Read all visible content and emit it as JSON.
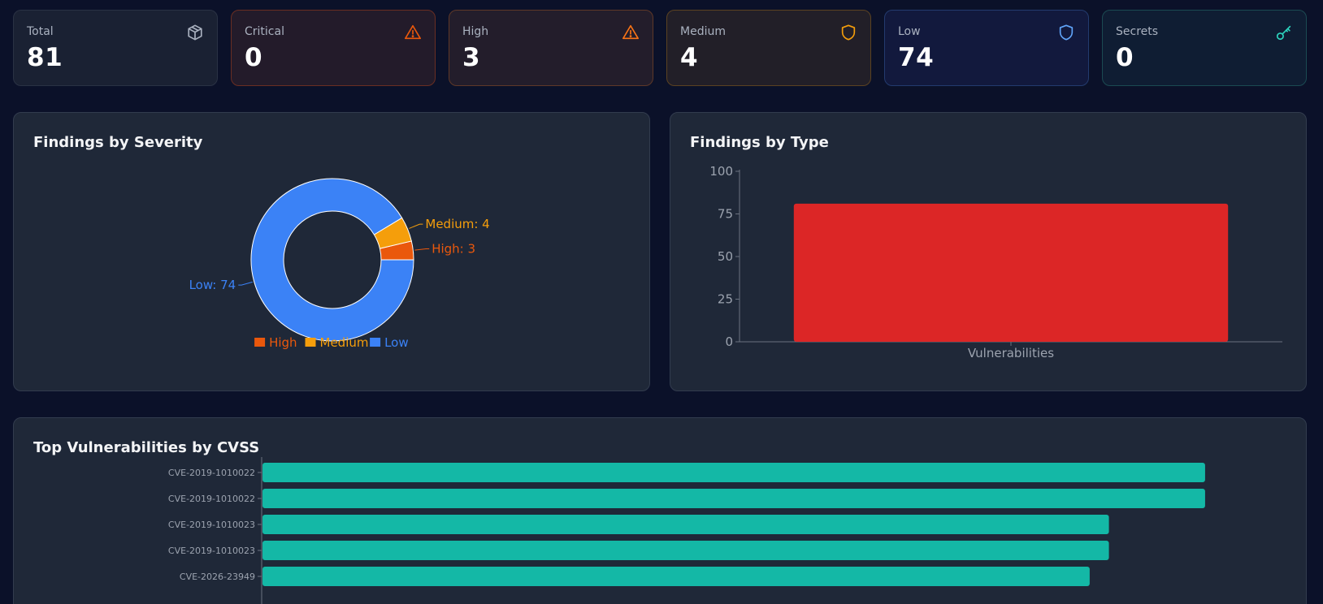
{
  "summary_cards": [
    {
      "key": "total",
      "label": "Total",
      "value": "81",
      "icon": "cube-icon",
      "color": "#aab2c0"
    },
    {
      "key": "critical",
      "label": "Critical",
      "value": "0",
      "icon": "alert-triangle-icon",
      "color": "#ea580c"
    },
    {
      "key": "high",
      "label": "High",
      "value": "3",
      "icon": "alert-triangle-icon",
      "color": "#f97316"
    },
    {
      "key": "medium",
      "label": "Medium",
      "value": "4",
      "icon": "shield-icon",
      "color": "#f59e0b"
    },
    {
      "key": "low",
      "label": "Low",
      "value": "74",
      "icon": "shield-icon",
      "color": "#60a5fa"
    },
    {
      "key": "secrets",
      "label": "Secrets",
      "value": "0",
      "icon": "key-icon",
      "color": "#2dd4bf"
    }
  ],
  "panels": {
    "severity_title": "Findings by Severity",
    "type_title": "Findings by Type",
    "cvss_title": "Top Vulnerabilities by CVSS"
  },
  "chart_data": [
    {
      "type": "pie",
      "title": "Findings by Severity",
      "donut": true,
      "categories": [
        "High",
        "Medium",
        "Low"
      ],
      "values": [
        3,
        4,
        74
      ],
      "slice_labels": [
        "High: 3",
        "Medium: 4",
        "Low: 74"
      ],
      "colors": [
        "#ea580c",
        "#f59e0b",
        "#3b82f6"
      ],
      "legend": [
        "High",
        "Medium",
        "Low"
      ],
      "legend_position": "bottom"
    },
    {
      "type": "bar",
      "title": "Findings by Type",
      "categories": [
        "Vulnerabilities"
      ],
      "values": [
        81
      ],
      "ylim": [
        0,
        100
      ],
      "yticks": [
        0,
        25,
        50,
        75,
        100
      ],
      "color": "#dc2626"
    },
    {
      "type": "bar",
      "orientation": "horizontal",
      "title": "Top Vulnerabilities by CVSS",
      "categories": [
        "CVE-2019-1010022",
        "CVE-2019-1010022",
        "CVE-2019-1010023",
        "CVE-2019-1010023",
        "CVE-2026-23949"
      ],
      "values": [
        9.8,
        9.8,
        8.8,
        8.8,
        8.6
      ],
      "xlim": [
        0,
        10
      ],
      "color": "#14b8a6"
    }
  ]
}
